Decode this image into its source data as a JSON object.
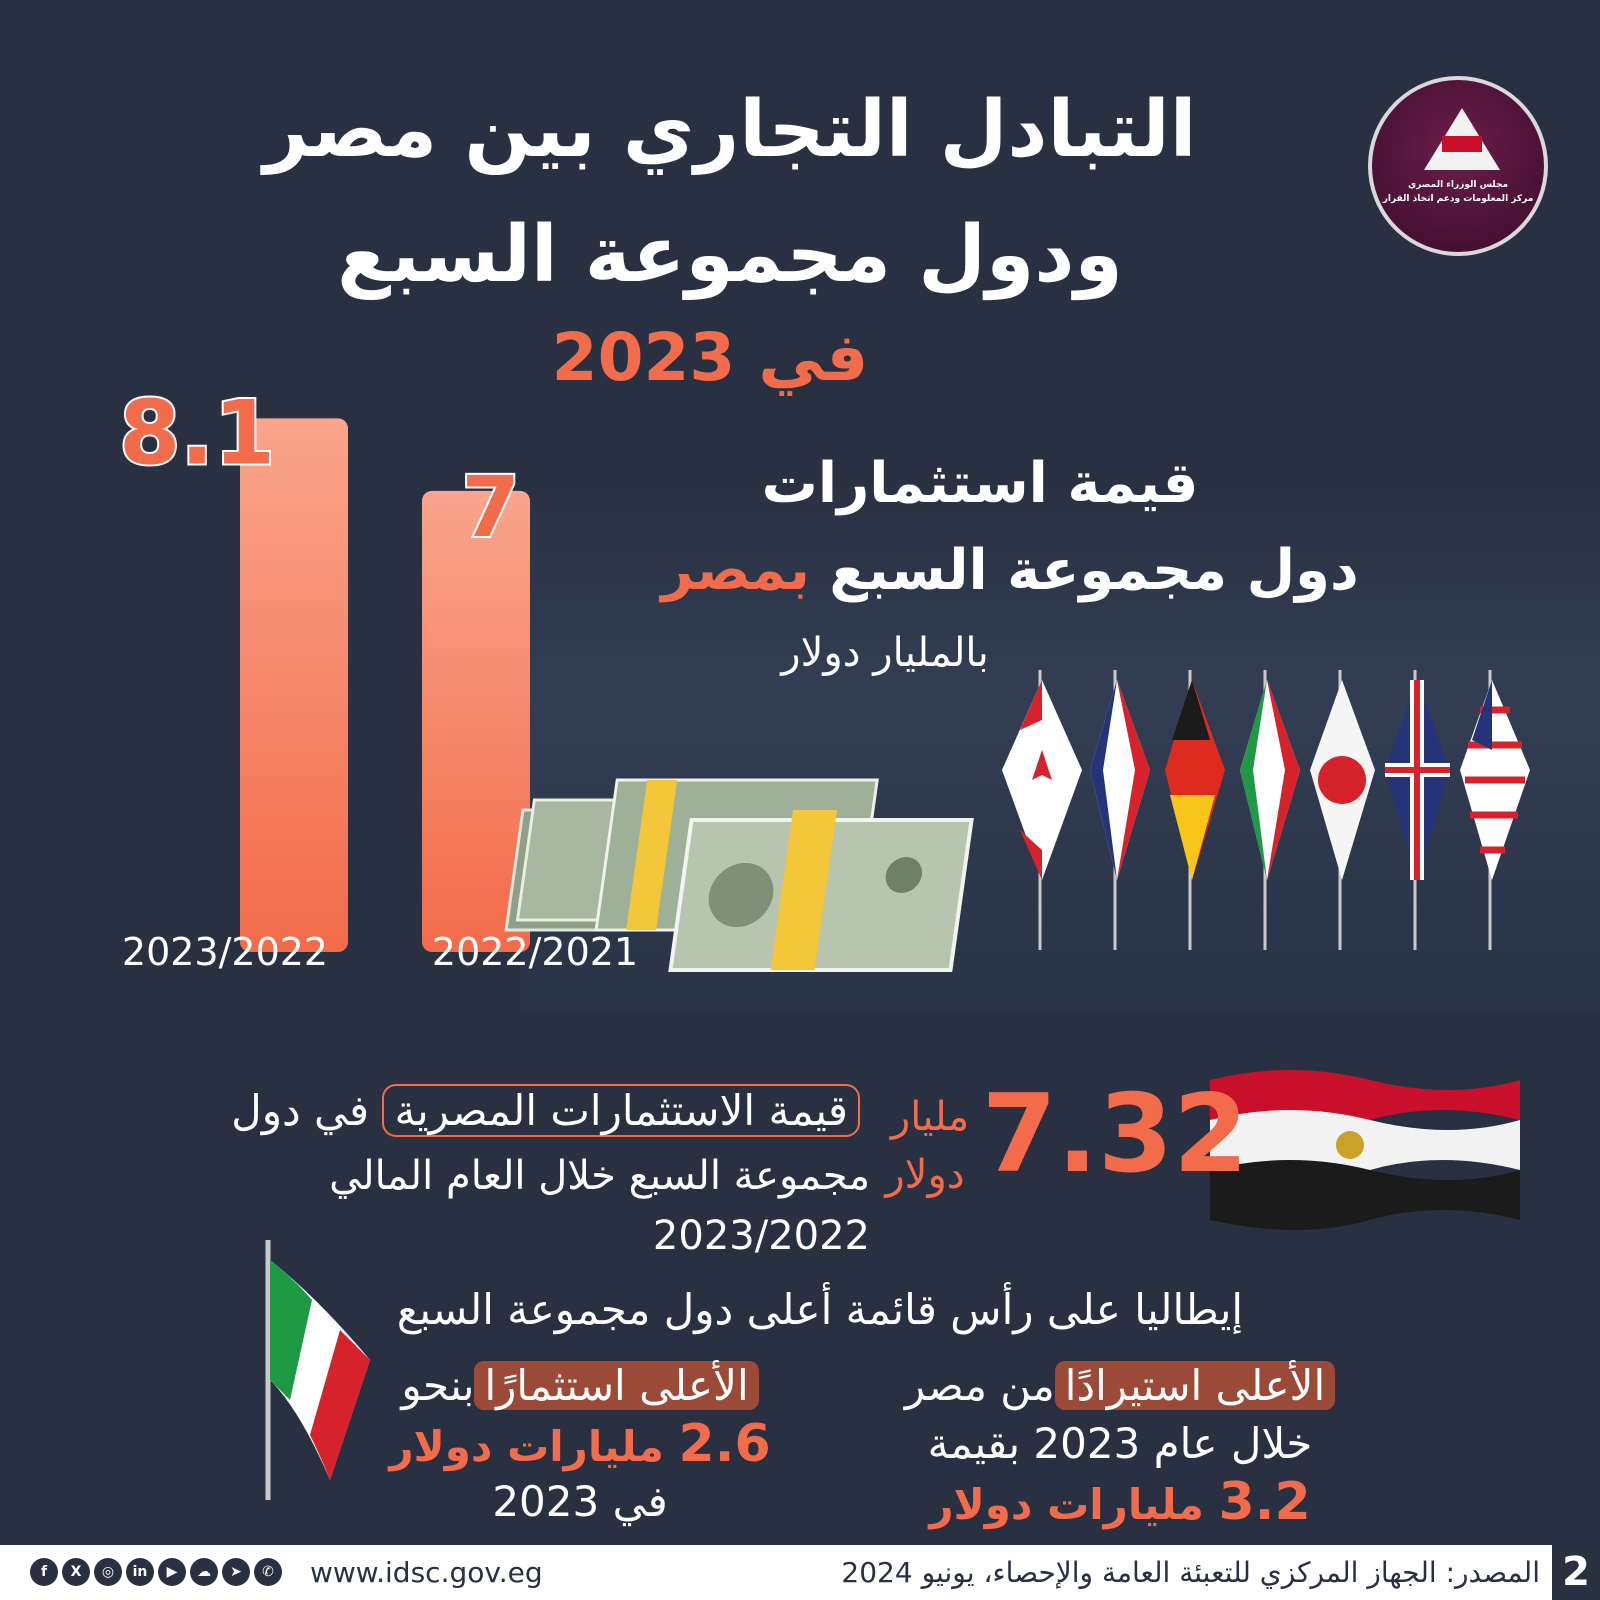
{
  "header": {
    "title_line1": "التبادل التجاري بين مصر",
    "title_line2": "ودول مجموعة السبع",
    "title_line3": "في 2023"
  },
  "logo": {
    "line1": "مجلس الوزراء المصري",
    "line2": "مركز المعلومات ودعم اتخاذ القرار"
  },
  "investment_heading": {
    "line1": "قيمة استثمارات",
    "line2_prefix": "دول مجموعة السبع",
    "line2_highlight": "بمصر",
    "line3": "بالمليار دولار"
  },
  "chart_data": {
    "type": "bar",
    "categories": [
      "2023/2022",
      "2022/2021"
    ],
    "values": [
      8.1,
      7
    ],
    "value_labels": [
      "8.1",
      "7"
    ],
    "ylim": [
      0,
      8.5
    ],
    "grid": false,
    "legend": "none",
    "colors": {
      "bar_top": "#f9a58c",
      "bar_bottom": "#f26b4a",
      "value": "#f26b4a"
    }
  },
  "egypt_investment": {
    "value": "7.32",
    "unit_line1": "مليار",
    "unit_line2": "دولار",
    "desc_boxed": "قيمة الاستثمارات المصرية",
    "desc_after_box": "في دول",
    "desc_line2": "مجموعة السبع خلال العام المالي 2023/2022"
  },
  "italy": {
    "heading": "إيطاليا على رأس قائمة أعلى دول مجموعة السبع",
    "imports": {
      "highlight": "الأعلى استيرادًا",
      "after": "من مصر",
      "line2": "خلال عام 2023 بقيمة",
      "value": "3.2",
      "unit": "مليارات دولار"
    },
    "investment": {
      "highlight": "الأعلى استثمارًا",
      "after": "بنحو",
      "value": "2.6",
      "unit": "مليارات دولار",
      "line3": "في 2023"
    }
  },
  "footer": {
    "source": "المصدر: الجهاز المركزي للتعبئة العامة والإحصاء، يونيو 2024",
    "website": "www.idsc.gov.eg",
    "page_number": "2",
    "social_icons": [
      "facebook-icon",
      "x-icon",
      "instagram-icon",
      "linkedin-icon",
      "youtube-icon",
      "soundcloud-icon",
      "telegram-icon",
      "whatsapp-icon"
    ]
  },
  "colors": {
    "background": "#293041",
    "accent": "#f26b4a",
    "highlight_pill": "#9a4a36",
    "text": "#ffffff"
  }
}
